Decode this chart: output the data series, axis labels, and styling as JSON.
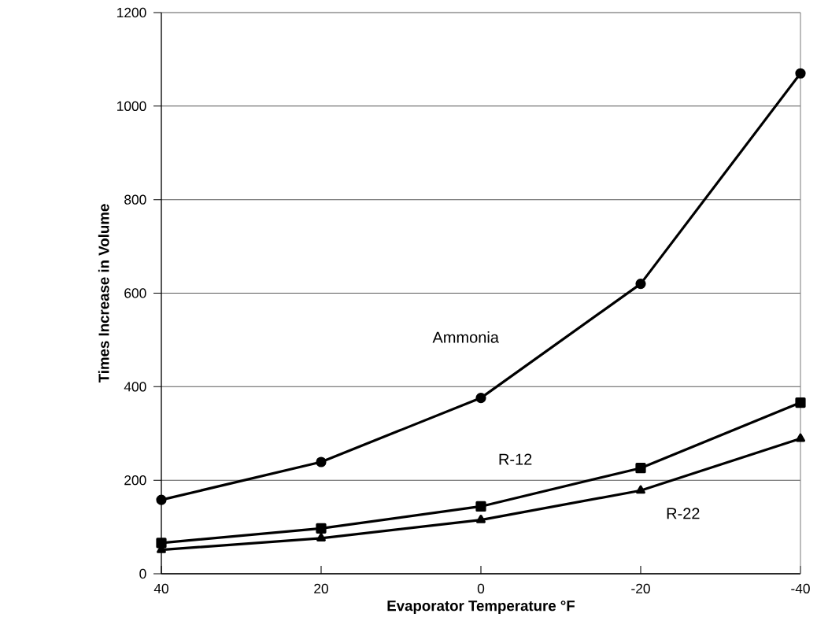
{
  "chart_data": {
    "type": "line",
    "xlabel": "Evaporator Temperature °F",
    "ylabel": "Times Increase in Volume",
    "x": [
      40,
      20,
      0,
      -20,
      -40
    ],
    "series": [
      {
        "name": "Ammonia",
        "color": "#000000",
        "marker": "circle",
        "values": [
          158,
          239,
          376,
          620,
          1070
        ]
      },
      {
        "name": "R-12",
        "color": "#000000",
        "marker": "square",
        "values": [
          66,
          97,
          144,
          226,
          366
        ]
      },
      {
        "name": "R-22",
        "color": "#000000",
        "marker": "triangle",
        "values": [
          51,
          76,
          115,
          178,
          289
        ]
      }
    ],
    "xlim": [
      40,
      -40
    ],
    "xticks": [
      40,
      20,
      0,
      -20,
      -40
    ],
    "ylim": [
      0,
      1200
    ],
    "yticks": [
      0,
      200,
      400,
      600,
      800,
      1000,
      1200
    ],
    "grid": "y",
    "legend": false,
    "line_style": "solid"
  }
}
